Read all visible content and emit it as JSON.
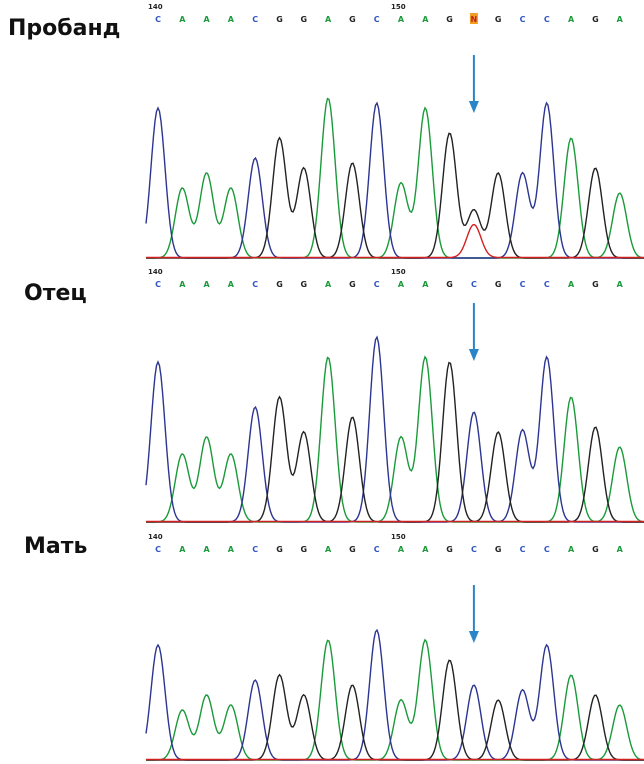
{
  "panels": [
    {
      "label": "Пробанд",
      "positions": [
        140,
        150
      ],
      "bases": [
        "C",
        "A",
        "A",
        "A",
        "C",
        "G",
        "G",
        "A",
        "G",
        "C",
        "A",
        "A",
        "G",
        "N",
        "G",
        "C",
        "C",
        "A",
        "G",
        "A"
      ]
    },
    {
      "label": "Отец",
      "positions": [
        140,
        150
      ],
      "bases": [
        "C",
        "A",
        "A",
        "A",
        "C",
        "G",
        "G",
        "A",
        "G",
        "C",
        "A",
        "A",
        "G",
        "C",
        "G",
        "C",
        "C",
        "A",
        "G",
        "A"
      ]
    },
    {
      "label": "Мать",
      "positions": [
        140,
        150
      ],
      "bases": [
        "C",
        "A",
        "A",
        "A",
        "C",
        "G",
        "G",
        "A",
        "G",
        "C",
        "A",
        "A",
        "G",
        "C",
        "G",
        "C",
        "C",
        "A",
        "G",
        "A"
      ]
    }
  ]
}
